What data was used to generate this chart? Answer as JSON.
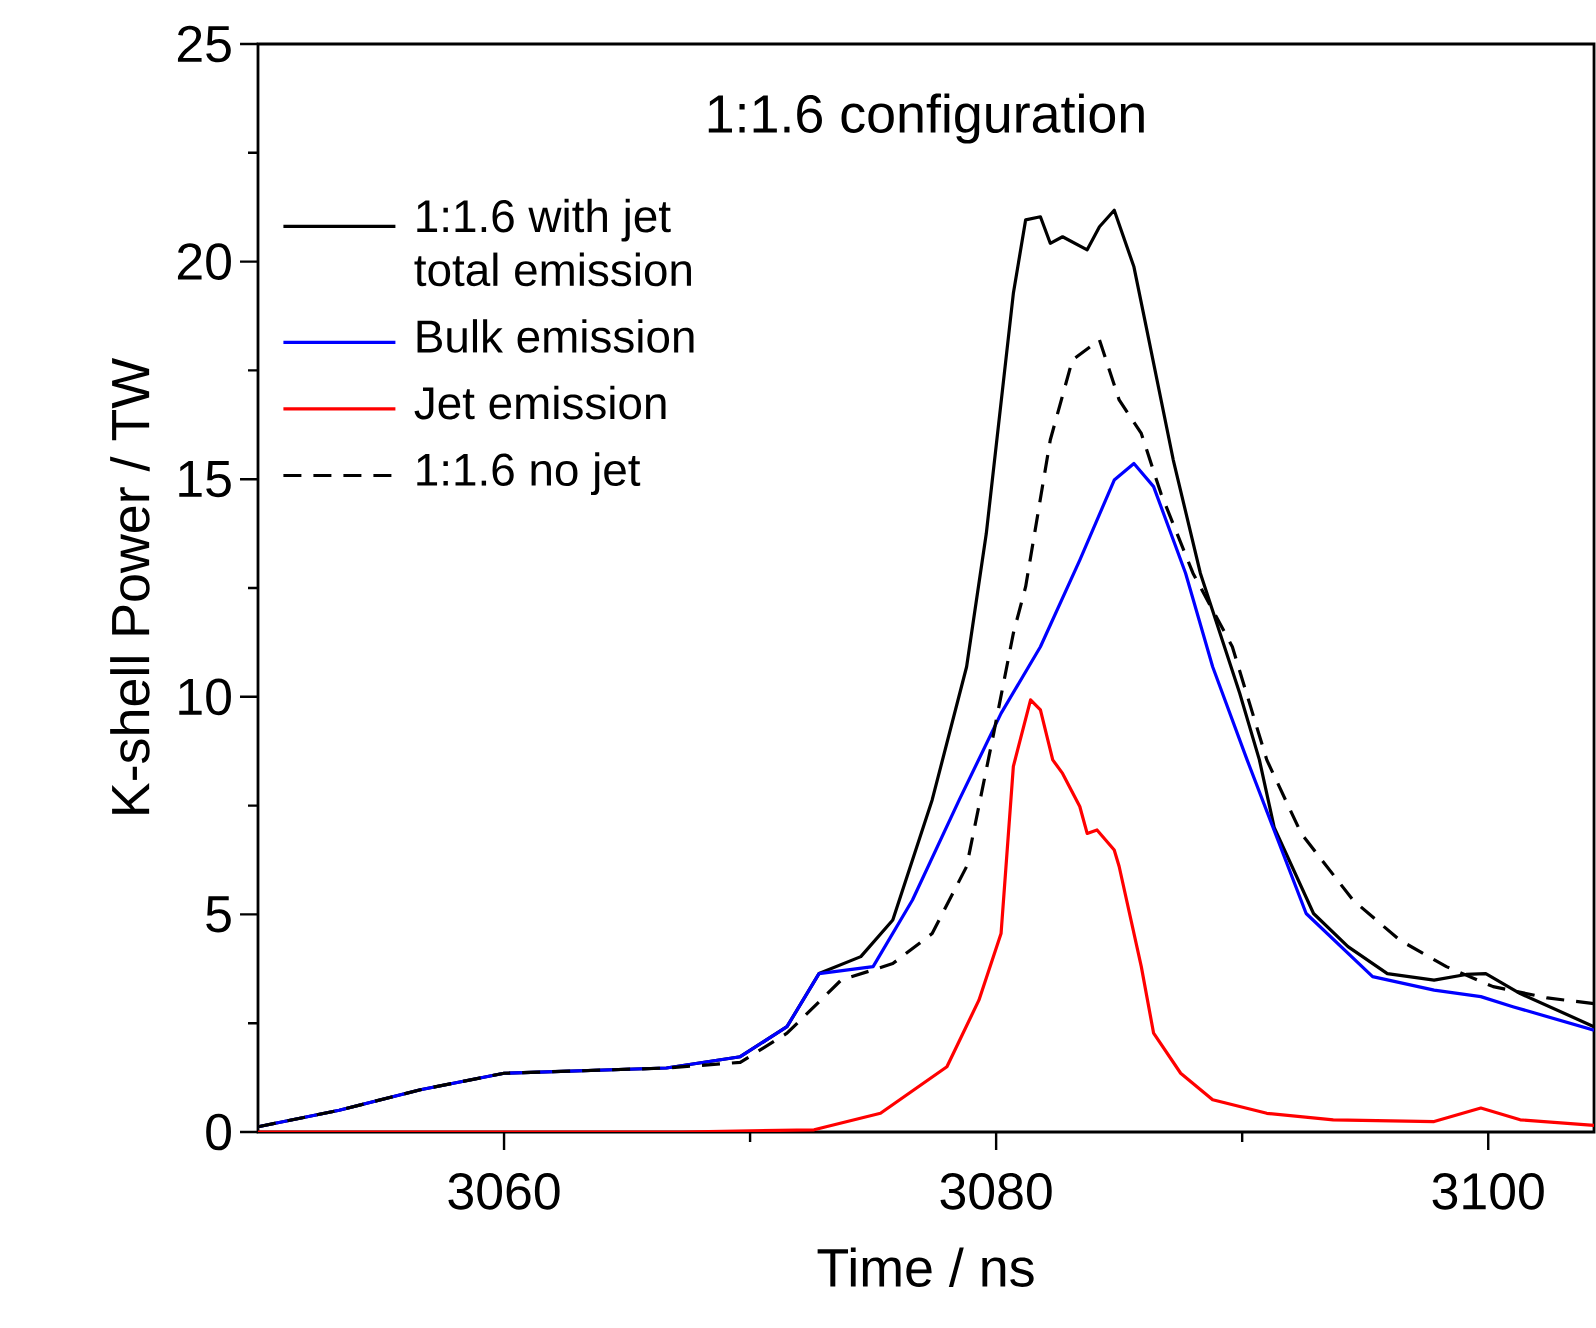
{
  "chart_data": {
    "type": "line",
    "title": "1:1.6 configuration",
    "xlabel": "Time / ns",
    "ylabel": "K-shell Power / TW",
    "xlim": [
      3050,
      3104.3
    ],
    "xticks": [
      3060,
      3080,
      3100
    ],
    "ylim": [
      0,
      25
    ],
    "yticks": [
      0,
      5,
      10,
      15,
      20,
      25
    ],
    "grid": false,
    "legend": "top left",
    "series": [
      {
        "name": "1:1.6 with jet total emission",
        "color": "#000000",
        "line_style": "solid",
        "x": [
          3050,
          3053.3,
          3056.6,
          3060,
          3066.6,
          3069.6,
          3071.5,
          3072.8,
          3074.5,
          3075.8,
          3077.4,
          3078.8,
          3079.6,
          3080.7,
          3081.2,
          3081.8,
          3082.2,
          3082.7,
          3083.7,
          3084.2,
          3084.8,
          3085.6,
          3086.1,
          3087.2,
          3088.3,
          3089.9,
          3090.7,
          3091.3,
          3092.9,
          3094.3,
          3095.9,
          3097.8,
          3099.1,
          3099.9,
          3101.3,
          3104.3
        ],
        "values": [
          0.12,
          0.5,
          0.97,
          1.35,
          1.47,
          1.73,
          2.42,
          3.64,
          4.03,
          4.87,
          7.63,
          10.69,
          13.75,
          19.27,
          20.96,
          21.03,
          20.42,
          20.57,
          20.27,
          20.8,
          21.18,
          19.88,
          18.5,
          15.44,
          12.84,
          10.08,
          8.55,
          7.0,
          5.02,
          4.26,
          3.64,
          3.49,
          3.62,
          3.64,
          3.18,
          2.42
        ]
      },
      {
        "name": "Bulk emission",
        "color": "#0000ff",
        "line_style": "solid",
        "x": [
          3050,
          3053.3,
          3056.6,
          3060,
          3066.6,
          3069.6,
          3071.5,
          3072.8,
          3075,
          3076.6,
          3078.5,
          3080.2,
          3081.8,
          3083.4,
          3084.8,
          3085.6,
          3086.4,
          3087.7,
          3088.8,
          3090.2,
          3092.6,
          3095.3,
          3097.8,
          3099.7,
          3101,
          3104.3
        ],
        "values": [
          0.12,
          0.5,
          0.97,
          1.35,
          1.47,
          1.73,
          2.42,
          3.64,
          3.8,
          5.33,
          7.63,
          9.62,
          11.15,
          13.14,
          14.98,
          15.36,
          14.83,
          12.84,
          10.69,
          8.55,
          5.02,
          3.57,
          3.26,
          3.11,
          2.88,
          2.34
        ]
      },
      {
        "name": "Jet emission",
        "color": "#ff0000",
        "line_style": "solid",
        "x": [
          3050,
          3067.2,
          3072.6,
          3075.3,
          3078,
          3079.3,
          3080.2,
          3080.7,
          3081.4,
          3081.8,
          3082.3,
          3082.7,
          3083.4,
          3083.7,
          3084.1,
          3084.8,
          3085,
          3085.9,
          3086.4,
          3087.5,
          3088.8,
          3091,
          3093.7,
          3097.8,
          3099.7,
          3101.3,
          3104.3
        ],
        "values": [
          0,
          0,
          0.05,
          0.43,
          1.5,
          3.03,
          4.56,
          8.4,
          9.93,
          9.7,
          8.55,
          8.24,
          7.48,
          6.86,
          6.94,
          6.48,
          6.1,
          3.8,
          2.27,
          1.35,
          0.74,
          0.43,
          0.28,
          0.24,
          0.55,
          0.28,
          0.15
        ]
      },
      {
        "name": "1:1.6 no jet",
        "color": "#000000",
        "line_style": "dashed",
        "x": [
          3050,
          3053.3,
          3056.6,
          3060,
          3066.6,
          3069.6,
          3071.5,
          3073.7,
          3075.8,
          3077.4,
          3078.8,
          3079.9,
          3080.7,
          3081.2,
          3082.2,
          3083.1,
          3084.2,
          3085,
          3085.9,
          3086.7,
          3088,
          3089.6,
          3091,
          3092.4,
          3094.5,
          3096.4,
          3098.3,
          3100.2,
          3102.4,
          3104.3
        ],
        "values": [
          0.12,
          0.5,
          0.97,
          1.35,
          1.47,
          1.6,
          2.27,
          3.49,
          3.87,
          4.56,
          6.1,
          9.16,
          11.46,
          12.53,
          15.9,
          17.74,
          18.2,
          16.82,
          16.05,
          14.67,
          12.84,
          11.15,
          8.55,
          6.86,
          5.33,
          4.41,
          3.8,
          3.34,
          3.08,
          2.95
        ]
      }
    ]
  }
}
